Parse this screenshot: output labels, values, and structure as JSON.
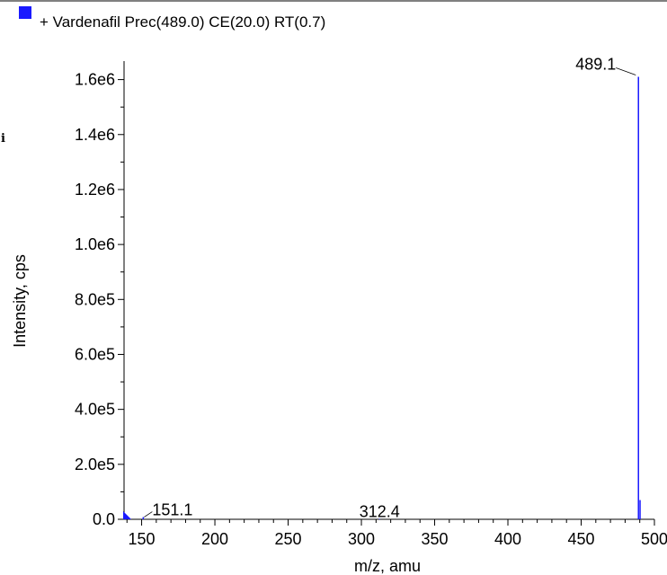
{
  "legend": {
    "label": "+ Vardenafil Prec(489.0) CE(20.0) RT(0.7)",
    "swatch_color": "#1a1aff"
  },
  "side_mark": "i",
  "chart_data": {
    "type": "bar",
    "title": "",
    "xlabel": "m/z, amu",
    "ylabel": "Intensity, cps",
    "xlim": [
      138,
      500
    ],
    "ylim": [
      0,
      1700000
    ],
    "x_ticks": [
      150,
      200,
      250,
      300,
      350,
      400,
      450,
      500
    ],
    "x_tick_labels": [
      "150",
      "200",
      "250",
      "300",
      "350",
      "400",
      "450",
      "500"
    ],
    "y_ticks": [
      0,
      200000,
      400000,
      600000,
      800000,
      1000000,
      1200000,
      1400000,
      1600000
    ],
    "y_tick_labels": [
      "0.0",
      "2.0e5",
      "4.0e5",
      "6.0e5",
      "8.0e5",
      "1.0e6",
      "1.2e6",
      "1.4e6",
      "1.6e6"
    ],
    "series_color": "#1a1aff",
    "series": [
      {
        "x": [
          151.1,
          312.4,
          489.1,
          490.2
        ],
        "values": [
          8000,
          2000,
          1610000,
          70000
        ]
      }
    ],
    "annotations": [
      {
        "text": "489.1",
        "x": 489.1,
        "y": 1610000
      },
      {
        "text": "151.1",
        "x": 151.1,
        "y": 8000
      },
      {
        "text": "312.4",
        "x": 312.4,
        "y": 2000
      }
    ]
  }
}
